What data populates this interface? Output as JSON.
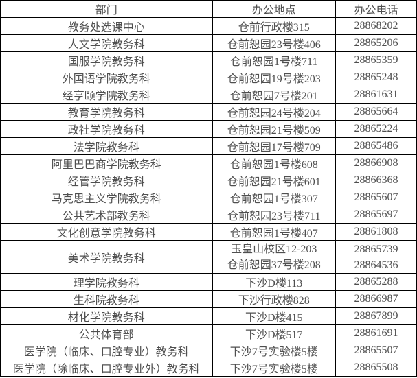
{
  "colors": {
    "background": "#ffffff",
    "border": "#000000",
    "text": "#4f4f4f"
  },
  "table": {
    "headers": [
      "部门",
      "办公地点",
      "办公电话"
    ],
    "rows": [
      {
        "dept": "教务处选课中心",
        "loc": [
          "仓前行政楼315"
        ],
        "tel": [
          "28868202"
        ]
      },
      {
        "dept": "人文学院教务科",
        "loc": [
          "仓前恕园23号楼406"
        ],
        "tel": [
          "28865206"
        ]
      },
      {
        "dept": "国服学院教务科",
        "loc": [
          "仓前恕园1号楼711"
        ],
        "tel": [
          "28865359"
        ]
      },
      {
        "dept": "外国语学院教务科",
        "loc": [
          "仓前恕园19号楼203"
        ],
        "tel": [
          "28865248"
        ]
      },
      {
        "dept": "经亨颐学院教务科",
        "loc": [
          "仓前恕园7号楼201"
        ],
        "tel": [
          "28861631"
        ]
      },
      {
        "dept": "教育学院教务科",
        "loc": [
          "仓前恕园24号楼204"
        ],
        "tel": [
          "28865664"
        ]
      },
      {
        "dept": "政社学院教务科",
        "loc": [
          "仓前恕园21号楼509"
        ],
        "tel": [
          "28865224"
        ]
      },
      {
        "dept": "法学院教务科",
        "loc": [
          "仓前恕园17号楼709"
        ],
        "tel": [
          "28865486"
        ]
      },
      {
        "dept": "阿里巴巴商学院教务科",
        "loc": [
          "仓前恕园1号楼608"
        ],
        "tel": [
          "28866908"
        ]
      },
      {
        "dept": "经管学院教务科",
        "loc": [
          "仓前恕园21号楼601"
        ],
        "tel": [
          "28866368"
        ]
      },
      {
        "dept": "马克思主义学院教务科",
        "loc": [
          "仓前恕园1号楼307"
        ],
        "tel": [
          "28865607"
        ]
      },
      {
        "dept": "公共艺术部教务科",
        "loc": [
          "仓前恕园23号楼711"
        ],
        "tel": [
          "28865697"
        ]
      },
      {
        "dept": "文化创意学院教务科",
        "loc": [
          "仓前恕园1号楼407"
        ],
        "tel": [
          "28861808"
        ]
      },
      {
        "dept": "美术学院教务科",
        "loc": [
          "玉皇山校区12-203",
          "仓前恕园37号楼208"
        ],
        "tel": [
          "28865739",
          "28864536"
        ]
      },
      {
        "dept": "理学院教务科",
        "loc": [
          "下沙D楼113"
        ],
        "tel": [
          "28865288"
        ]
      },
      {
        "dept": "生科院教务科",
        "loc": [
          "下沙行政楼828"
        ],
        "tel": [
          "28866987"
        ]
      },
      {
        "dept": "材化学院教务科",
        "loc": [
          "下沙D楼415"
        ],
        "tel": [
          "28867899"
        ]
      },
      {
        "dept": "公共体育部",
        "loc": [
          "下沙D楼517"
        ],
        "tel": [
          "28861691"
        ]
      },
      {
        "dept": "医学院（临床、口腔专业）教务科",
        "loc": [
          "下沙7号实验楼5楼"
        ],
        "tel": [
          "28865507"
        ]
      },
      {
        "dept": "医学院（除临床、口腔专业外）教务科",
        "loc": [
          "下沙7号实验楼5楼"
        ],
        "tel": [
          "28865508"
        ]
      }
    ]
  }
}
